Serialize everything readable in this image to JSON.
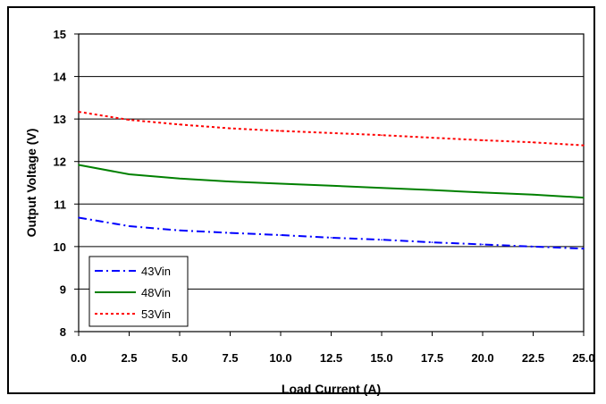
{
  "chart_data": {
    "type": "line",
    "xlabel": "Load Current (A)",
    "ylabel": "Output Voltage (V)",
    "xlim": [
      0,
      25
    ],
    "ylim": [
      8,
      15
    ],
    "x_ticks": [
      "0.0",
      "2.5",
      "5.0",
      "7.5",
      "10.0",
      "12.5",
      "15.0",
      "17.5",
      "20.0",
      "22.5",
      "25.0"
    ],
    "y_ticks": [
      "8",
      "9",
      "10",
      "11",
      "12",
      "13",
      "14",
      "15"
    ],
    "grid": "horizontal",
    "legend_position": "bottom-left",
    "x": [
      0,
      2.5,
      5,
      7.5,
      10,
      12.5,
      15,
      17.5,
      20,
      22.5,
      25
    ],
    "series": [
      {
        "name": "43Vin",
        "color": "#0000ff",
        "dash": "dash-dot",
        "values": [
          10.68,
          10.48,
          10.38,
          10.32,
          10.27,
          10.21,
          10.16,
          10.1,
          10.05,
          10.0,
          9.95
        ]
      },
      {
        "name": "48Vin",
        "color": "#008000",
        "dash": "solid",
        "values": [
          11.92,
          11.7,
          11.6,
          11.53,
          11.48,
          11.43,
          11.38,
          11.33,
          11.27,
          11.22,
          11.15
        ]
      },
      {
        "name": "53Vin",
        "color": "#ff0000",
        "dash": "dotted",
        "values": [
          13.17,
          12.98,
          12.87,
          12.78,
          12.72,
          12.67,
          12.62,
          12.56,
          12.5,
          12.45,
          12.38
        ]
      }
    ]
  }
}
